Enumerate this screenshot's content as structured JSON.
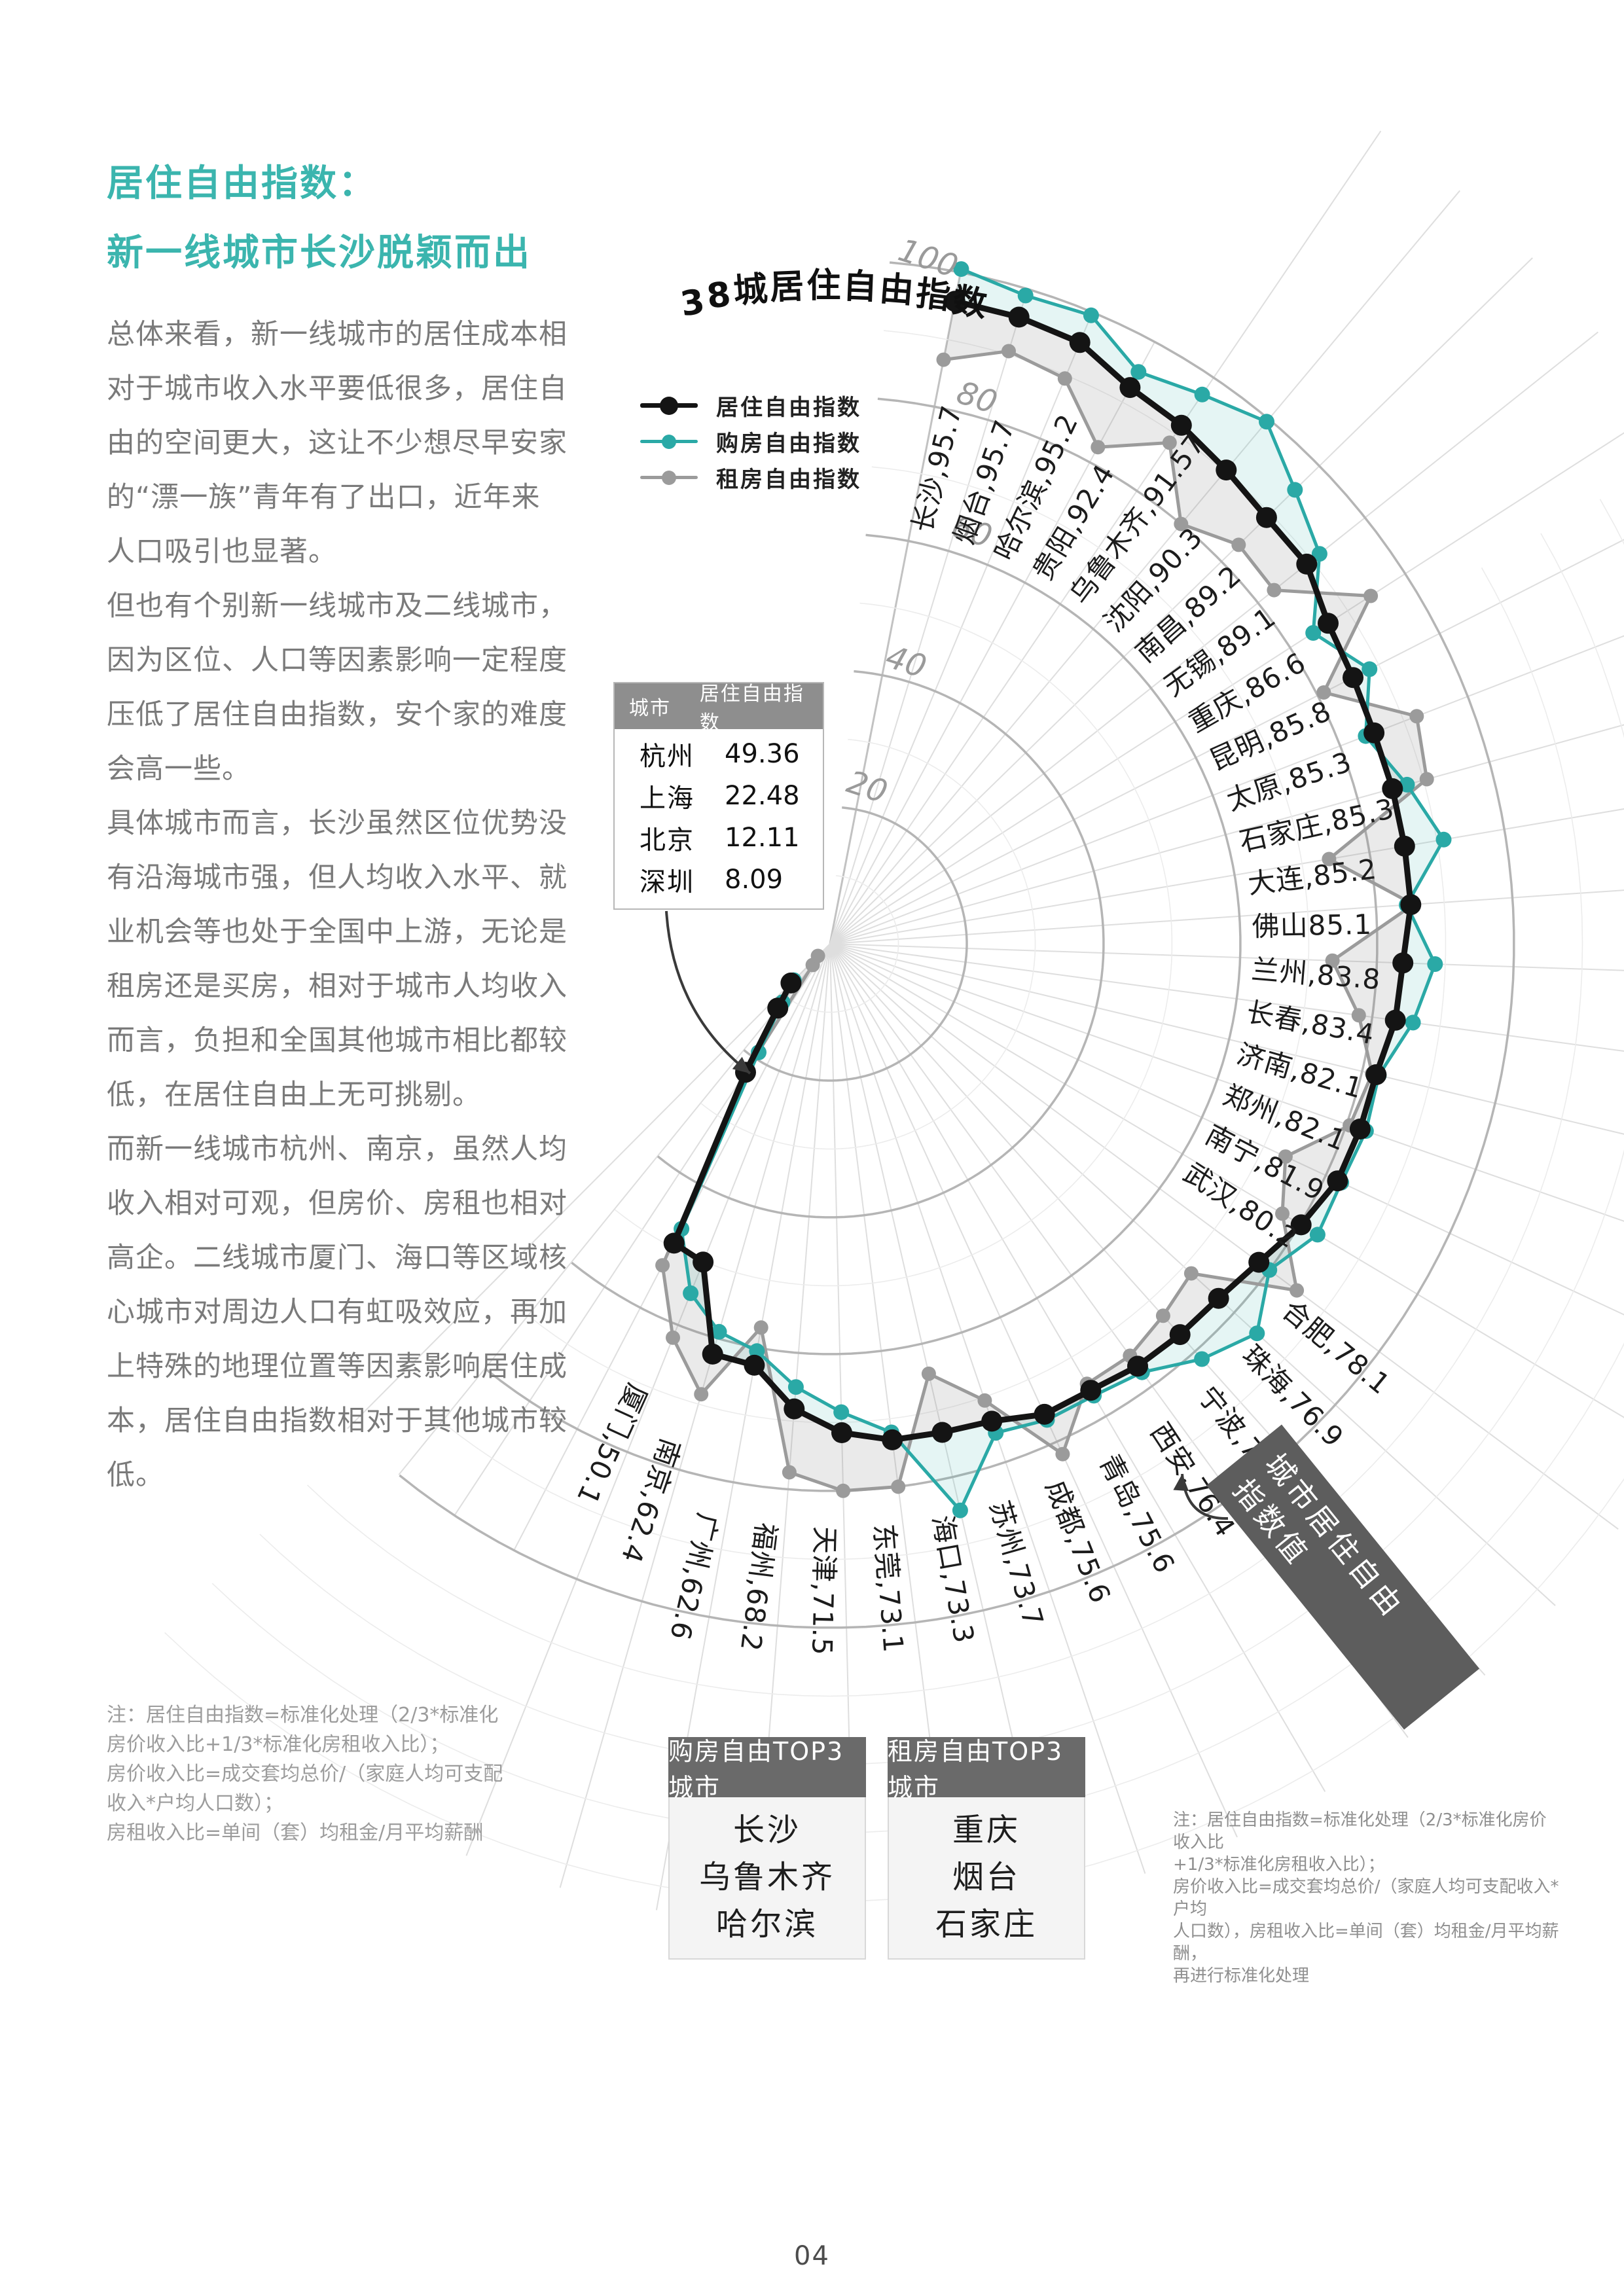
{
  "page": {
    "number": "04"
  },
  "header": {
    "title_line1": "居住自由指数：",
    "title_line2": "新一线城市长沙脱颖而出",
    "accent_color": "#3bb5ae"
  },
  "article": {
    "lines": [
      "总体来看，新一线城市的居住成本相",
      "对于城市收入水平要低很多，居住自",
      "由的空间更大，这让不少想尽早安家",
      "的“漂一族”青年有了出口，近年来",
      "人口吸引也显著。",
      "但也有个别新一线城市及二线城市，",
      "因为区位、人口等因素影响一定程度",
      "压低了居住自由指数，安个家的难度",
      "会高一些。",
      "具体城市而言，长沙虽然区位优势没",
      "有沿海城市强，但人均收入水平、就",
      "业机会等也处于全国中上游，无论是",
      "租房还是买房，相对于城市人均收入",
      "而言，负担和全国其他城市相比都较",
      "低，在居住自由上无可挑剔。",
      "而新一线城市杭州、南京，虽然人均",
      "收入相对可观，但房价、房租也相对",
      "高企。二线城市厦门、海口等区域核",
      "心城市对周边人口有虹吸效应，再加",
      "上特殊的地理位置等因素影响居住成",
      "本，居住自由指数相对于其他城市较",
      "低。"
    ]
  },
  "left_note": {
    "lines": [
      "注：居住自由指数=标准化处理（2/3*标准化",
      "房价收入比+1/3*标准化房租收入比）；",
      "房价收入比=成交套均总价/（家庭人均可支配",
      "收入*户均人口数）；",
      "房租收入比=单间（套）均租金/月平均薪酬"
    ]
  },
  "right_note": {
    "lines": [
      "注：居住自由指数=标准化处理（2/3*标准化房价收入比",
      "+1/3*标准化房租收入比）；",
      "房价收入比=成交套均总价/（家庭人均可支配收入*户均",
      "人口数），房租收入比=单间（套）均租金/月平均薪酬，",
      "再进行标准化处理"
    ]
  },
  "chart": {
    "title": "38城居住自由指数",
    "legend": [
      {
        "label": "居住自由指数",
        "color": "#141414"
      },
      {
        "label": "购房自由指数",
        "color": "#2aa9a6"
      },
      {
        "label": "租房自由指数",
        "color": "#9b9b9b"
      }
    ],
    "axis_ticks": [
      "20",
      "40",
      "60",
      "80",
      "100"
    ],
    "band_label_line1": "城市居住自由",
    "band_label_line2": "指数值"
  },
  "table": {
    "headers": [
      "城市",
      "居住自由指数"
    ],
    "rows": [
      [
        "杭州",
        "49.36"
      ],
      [
        "上海",
        "22.48"
      ],
      [
        "北京",
        "12.11"
      ],
      [
        "深圳",
        "8.09"
      ]
    ]
  },
  "top3_purchase": {
    "title": "购房自由TOP3城市",
    "cities": [
      "长沙",
      "乌鲁木齐",
      "哈尔滨"
    ]
  },
  "top3_rent": {
    "title": "租房自由TOP3城市",
    "cities": [
      "重庆",
      "烟台",
      "石家庄"
    ]
  },
  "chart_data": {
    "type": "line",
    "layout": "polar-spiral",
    "title": "38城居住自由指数",
    "legend_position": "left",
    "grid": true,
    "r_axis": {
      "ticks": [
        20,
        40,
        60,
        80,
        100
      ],
      "max": 100
    },
    "categories": [
      "长沙",
      "烟台",
      "哈尔滨",
      "贵阳",
      "乌鲁木齐",
      "沈阳",
      "南昌",
      "无锡",
      "重庆",
      "昆明",
      "太原",
      "石家庄",
      "大连",
      "佛山",
      "兰州",
      "长春",
      "济南",
      "郑州",
      "南宁",
      "武汉",
      "合肥",
      "珠海",
      "宁波",
      "西安",
      "青岛",
      "成都",
      "苏州",
      "海口",
      "东莞",
      "天津",
      "福州",
      "广州",
      "南京",
      "厦门",
      "杭州",
      "上海",
      "北京",
      "深圳"
    ],
    "point_labels": [
      "长沙,95.7",
      "烟台,95.7",
      "哈尔滨,95.2",
      "贵阳,92.4",
      "乌鲁木齐,91.57",
      "沈阳,90.3",
      "南昌,89.2",
      "无锡,89.1",
      "重庆,86.6",
      "昆明,85.8",
      "太原,85.3",
      "石家庄,85.3",
      "大连,85.2",
      "佛山85.1",
      "兰州,83.8",
      "长春,83.4",
      "济南,82.1",
      "郑州,82.1",
      "南宁,81.9",
      "武汉,80.2",
      "合肥,78.1",
      "珠海,76.9",
      "宁波,76.7",
      "西安,76.4",
      "青岛,75.6",
      "成都,75.6",
      "苏州,73.7",
      "海口,73.3",
      "东莞,73.1",
      "天津,71.5",
      "福州,68.2",
      "广州,62.6",
      "南京,62.4",
      "厦门,50.1"
    ],
    "series": [
      {
        "name": "居住自由指数",
        "color": "#141414",
        "values": [
          95.7,
          95.7,
          95.2,
          92.4,
          91.57,
          90.3,
          89.2,
          89.1,
          86.6,
          85.8,
          85.3,
          85.3,
          85.2,
          85.1,
          83.8,
          83.4,
          82.1,
          82.1,
          81.9,
          80.2,
          78.1,
          76.9,
          76.7,
          76.4,
          75.6,
          75.6,
          73.7,
          73.3,
          73.1,
          71.5,
          68.2,
          62.6,
          62.4,
          50.1,
          49.36,
          22.48,
          12.11,
          8.09
        ]
      },
      {
        "name": "购房自由指数",
        "color": "#2aa9a6",
        "estimated": true,
        "values": [
          100.5,
          99,
          99.5,
          95,
          97,
          99.5,
          95,
          91.5,
          84,
          88.5,
          84,
          87.5,
          91,
          84.5,
          88.5,
          86,
          82.5,
          83,
          82.5,
          83,
          80,
          84.5,
          81.5,
          77.5,
          76.5,
          76.5,
          75.5,
          85,
          72,
          68.5,
          65,
          60.5,
          59,
          55,
          47,
          19,
          11,
          7.5
        ]
      },
      {
        "name": "租房自由指数",
        "color": "#9b9b9b",
        "estimated": true,
        "values": [
          87,
          90.5,
          89.5,
          82.5,
          88.5,
          80,
          83.5,
          83,
          94,
          81,
          92,
          90.5,
          74,
          85.5,
          73.5,
          78,
          81.5,
          80.5,
          73.5,
          77,
          85,
          71.5,
          73,
          74.5,
          74.5,
          82,
          70.5,
          64.5,
          80,
          80,
          77.5,
          57,
          68.5,
          62,
          53,
          22,
          4,
          2.5
        ]
      }
    ]
  }
}
